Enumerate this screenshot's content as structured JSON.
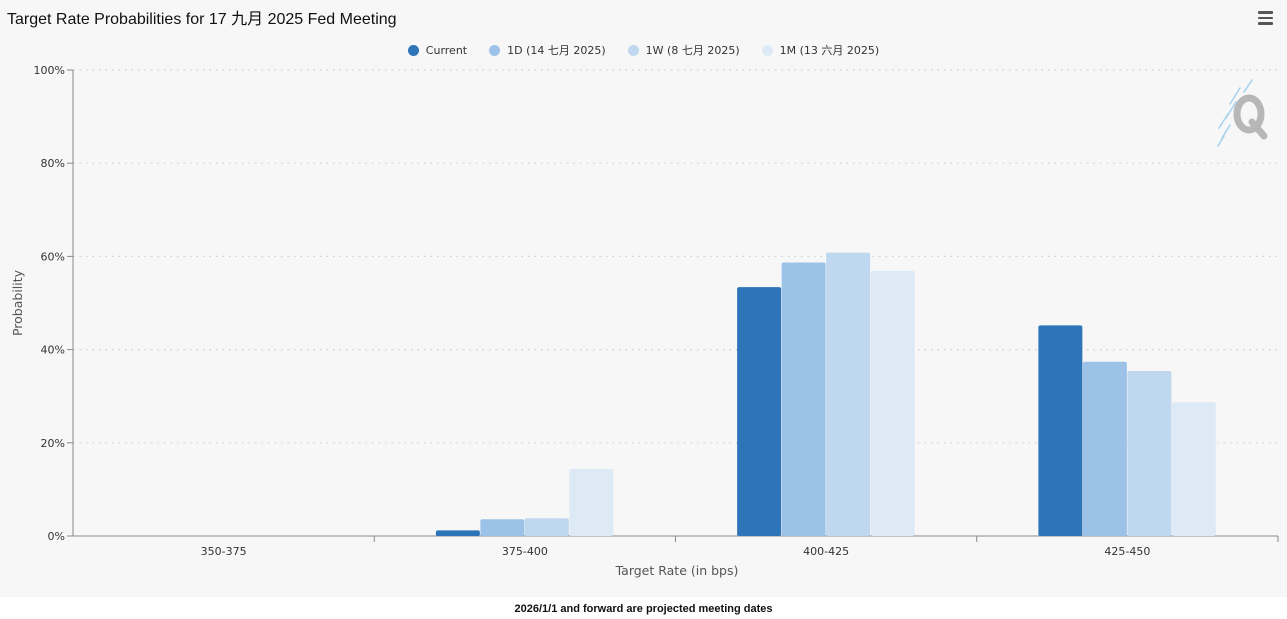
{
  "title": "Target Rate Probabilities for 17 九月 2025 Fed Meeting",
  "menu_icon": "hamburger-menu-icon",
  "watermark_icon": "q-logo-icon",
  "footer_note": "2026/1/1 and forward are projected meeting dates",
  "colors": {
    "current": "#2e74b8",
    "d1": "#9cc2e8",
    "w1": "#bfd8ef",
    "m1": "#ddeaf6"
  },
  "chart_data": {
    "type": "bar",
    "categories": [
      "350-375",
      "375-400",
      "400-425",
      "425-450"
    ],
    "series": [
      {
        "name": "Current",
        "color": "#2e74b8",
        "values": [
          0,
          1.2,
          53.4,
          45.2
        ]
      },
      {
        "name": "1D (14 七月 2025)",
        "color": "#9cc2e8",
        "values": [
          0,
          3.6,
          58.7,
          37.4
        ]
      },
      {
        "name": "1W (8 七月 2025)",
        "color": "#bfd8ef",
        "values": [
          0,
          3.8,
          60.8,
          35.4
        ]
      },
      {
        "name": "1M (13 六月 2025)",
        "color": "#ddeaf6",
        "values": [
          0,
          14.4,
          56.9,
          28.7
        ]
      }
    ],
    "xlabel": "Target Rate (in bps)",
    "ylabel": "Probability",
    "ylim": [
      0,
      100
    ],
    "yticks": [
      "0%",
      "20%",
      "40%",
      "60%",
      "80%",
      "100%"
    ],
    "ytick_values": [
      0,
      20,
      40,
      60,
      80,
      100
    ],
    "grid": true,
    "legend_position": "top-center"
  }
}
